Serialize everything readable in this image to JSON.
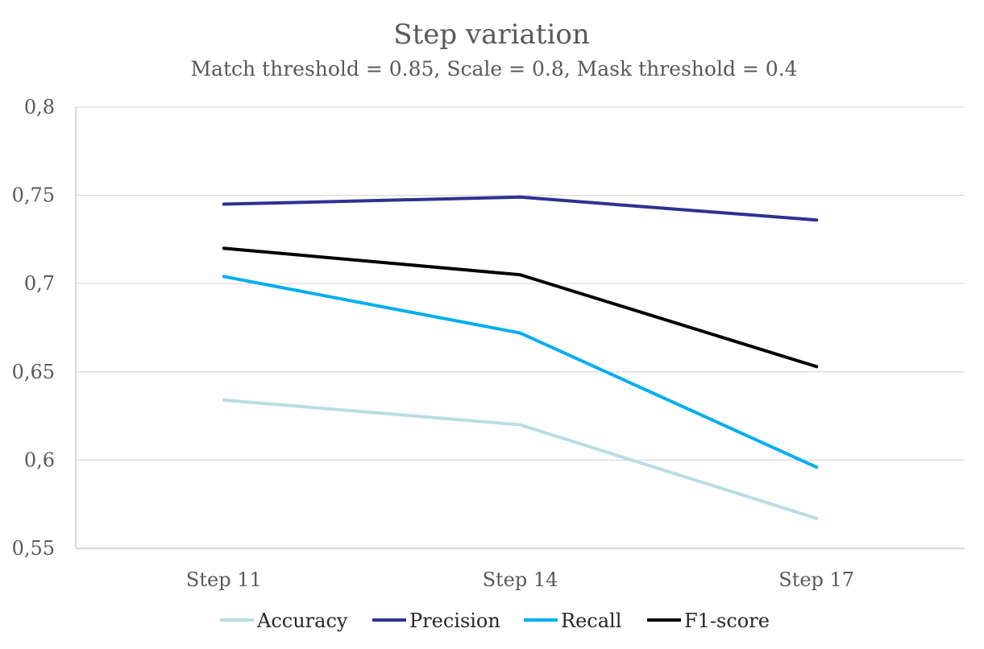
{
  "chart_data": {
    "type": "line",
    "title": "Step variation",
    "subtitle": "Match threshold = 0.85, Scale = 0.8, Mask threshold = 0.4",
    "xlabel": "",
    "ylabel": "",
    "categories": [
      "Step 11",
      "Step 14",
      "Step 17"
    ],
    "ylim": [
      0.55,
      0.8
    ],
    "yticks": [
      0.55,
      0.6,
      0.65,
      0.7,
      0.75,
      0.8
    ],
    "ytick_labels": [
      "0,55",
      "0,6",
      "0,65",
      "0,7",
      "0,75",
      "0,8"
    ],
    "grid": true,
    "legend_position": "bottom",
    "series": [
      {
        "name": "Accuracy",
        "color": "#b9dde3",
        "values": [
          0.634,
          0.62,
          0.567
        ]
      },
      {
        "name": "Precision",
        "color": "#2e3192",
        "values": [
          0.745,
          0.749,
          0.736
        ]
      },
      {
        "name": "Recall",
        "color": "#00aeef",
        "values": [
          0.704,
          0.672,
          0.596
        ]
      },
      {
        "name": "F1-score",
        "color": "#000000",
        "values": [
          0.72,
          0.705,
          0.653
        ]
      }
    ]
  }
}
